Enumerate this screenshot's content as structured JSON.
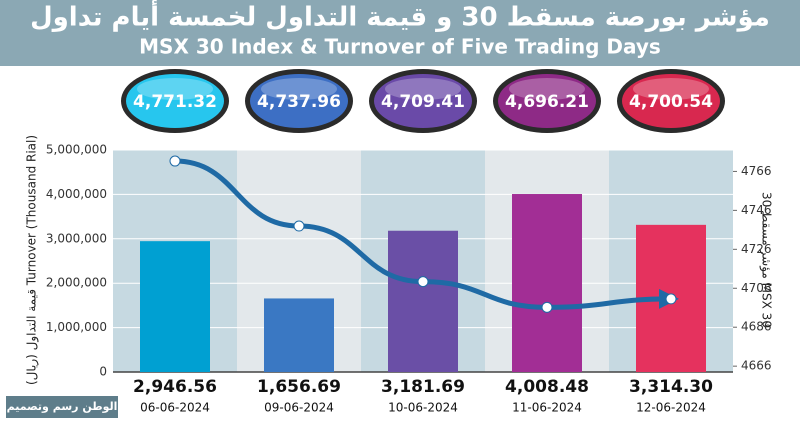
{
  "chart_data": {
    "type": "bar-line",
    "title": "مؤشر بورصة مسقط 30 و قيمة التداول لخمسة أيام تداول",
    "subtitle": "MSX 30 Index & Turnover of Five Trading Days",
    "y_label": "قيمة التداول (ريال)  Turnover (Thousand Rial)",
    "y2_label": "مؤشر مسقط 30  MSX 30",
    "credit": "الوطن رسم وتصميم",
    "categories": [
      "06-06-2024",
      "09-06-2024",
      "10-06-2024",
      "11-06-2024",
      "12-06-2024"
    ],
    "series": [
      {
        "type": "bar",
        "values": [
          2946560,
          1656690,
          3181690,
          4008480,
          3314300
        ],
        "value_labels": [
          "2,946.56",
          "1,656.69",
          "3,181.69",
          "4,008.48",
          "3,314.30"
        ],
        "colors": [
          "#00a0d2",
          "#3a78c3",
          "#6a4fa6",
          "#a22e95",
          "#e5325e"
        ]
      },
      {
        "type": "line",
        "axis": "y2",
        "color": "#1f6aa5",
        "values": [
          4771.32,
          4737.96,
          4709.41,
          4696.21,
          4700.54
        ],
        "value_labels": [
          "4,771.32",
          "4,737.96",
          "4,709.41",
          "4,696.21",
          "4,700.54"
        ],
        "colors": [
          "#27c6ee",
          "#3d6fc4",
          "#6a4aa8",
          "#8e2a86",
          "#d8284f"
        ]
      }
    ],
    "ylim": [
      0,
      5000000
    ],
    "yticks": [
      0,
      {
        "value": 1000000,
        "label": "1,000,000"
      },
      {
        "value": 2000000,
        "label": "2,000,000"
      },
      {
        "value": 3000000,
        "label": "3,000,000"
      },
      {
        "value": 4000000,
        "label": "4,000,000"
      },
      {
        "value": 5000000,
        "label": "5,000,000"
      }
    ],
    "y2lim": [
      4663,
      4777
    ],
    "y2ticks": [
      4666,
      4686,
      4706,
      4726,
      4746,
      4766
    ]
  }
}
